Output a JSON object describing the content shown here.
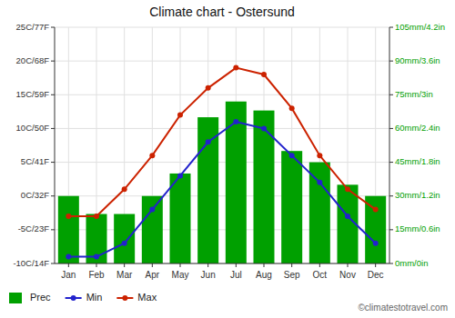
{
  "chart_data": {
    "type": "bar",
    "title": "Climate chart - Ostersund",
    "categories": [
      "Jan",
      "Feb",
      "Mar",
      "Apr",
      "May",
      "Jun",
      "Jul",
      "Aug",
      "Sep",
      "Oct",
      "Nov",
      "Dec"
    ],
    "series": [
      {
        "name": "Prec",
        "type": "bar",
        "axis": "y2",
        "color": "#00a000",
        "values": [
          30,
          22,
          22,
          30,
          40,
          65,
          72,
          68,
          50,
          45,
          35,
          30
        ]
      },
      {
        "name": "Min",
        "type": "line",
        "color": "#2222cc",
        "marker": "circle",
        "values": [
          -9,
          -9,
          -7,
          -2,
          3,
          8,
          11,
          10,
          6,
          2,
          -3,
          -7
        ]
      },
      {
        "name": "Max",
        "type": "line",
        "color": "#cc2200",
        "marker": "circle",
        "values": [
          -3,
          -3,
          1,
          6,
          12,
          16,
          19,
          18,
          13,
          6,
          1,
          -2
        ]
      }
    ],
    "ylim": [
      -10,
      25
    ],
    "yticks": [
      {
        "value": -10,
        "label": "-10C/14F"
      },
      {
        "value": -5,
        "label": "-5C/23F"
      },
      {
        "value": 0,
        "label": "0C/32F"
      },
      {
        "value": 5,
        "label": "5C/41F"
      },
      {
        "value": 10,
        "label": "10C/50F"
      },
      {
        "value": 15,
        "label": "15C/59F"
      },
      {
        "value": 20,
        "label": "20C/68F"
      },
      {
        "value": 25,
        "label": "25C/77F"
      }
    ],
    "y2lim": [
      0,
      105
    ],
    "y2ticks": [
      {
        "value": 0,
        "label": "0mm/0in"
      },
      {
        "value": 15,
        "label": "15mm/0.6in"
      },
      {
        "value": 30,
        "label": "30mm/1.2in"
      },
      {
        "value": 45,
        "label": "45mm/1.8in"
      },
      {
        "value": 60,
        "label": "60mm/2.4in"
      },
      {
        "value": 75,
        "label": "75mm/3in"
      },
      {
        "value": 90,
        "label": "90mm/3.6in"
      },
      {
        "value": 105,
        "label": "105mm/4.2in"
      }
    ],
    "grid": true,
    "legend": "bottom",
    "annotations": [
      "©climatestotravel.com"
    ]
  }
}
